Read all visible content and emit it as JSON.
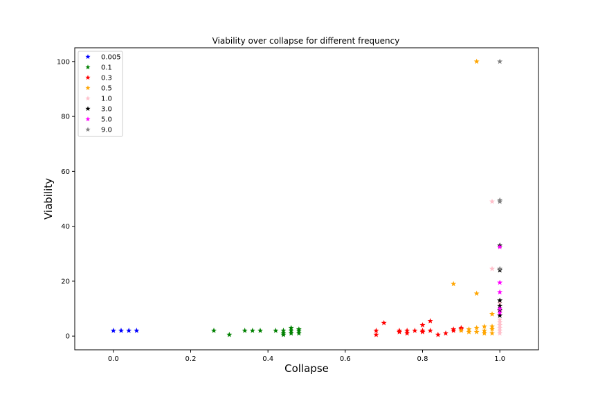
{
  "chart_data": {
    "type": "scatter",
    "title": "Viability over collapse for different frequency",
    "xlabel": "Collapse",
    "ylabel": "Viability",
    "xlim": [
      -0.1,
      1.1
    ],
    "ylim": [
      -5,
      105
    ],
    "xticks": [
      "0.0",
      "0.2",
      "0.4",
      "0.6",
      "0.8",
      "1.0"
    ],
    "yticks": [
      "0",
      "20",
      "40",
      "60",
      "80",
      "100"
    ],
    "grid": false,
    "legend": "top-left",
    "marker": "star",
    "series": [
      {
        "name": "0.005",
        "color": "#0000ff",
        "points": [
          [
            0.0,
            2
          ],
          [
            0.02,
            2
          ],
          [
            0.04,
            2
          ],
          [
            0.06,
            2
          ]
        ]
      },
      {
        "name": "0.1",
        "color": "#008000",
        "points": [
          [
            0.26,
            2
          ],
          [
            0.3,
            0.5
          ],
          [
            0.34,
            2
          ],
          [
            0.36,
            2
          ],
          [
            0.38,
            2
          ],
          [
            0.42,
            2
          ],
          [
            0.44,
            2
          ],
          [
            0.44,
            1
          ],
          [
            0.44,
            0.5
          ],
          [
            0.46,
            3
          ],
          [
            0.46,
            2
          ],
          [
            0.46,
            1
          ],
          [
            0.48,
            2.5
          ],
          [
            0.48,
            2
          ],
          [
            0.48,
            1
          ]
        ]
      },
      {
        "name": "0.3",
        "color": "#ff0000",
        "points": [
          [
            0.68,
            2
          ],
          [
            0.68,
            0.5
          ],
          [
            0.7,
            4.8
          ],
          [
            0.74,
            2
          ],
          [
            0.74,
            1.5
          ],
          [
            0.76,
            2
          ],
          [
            0.76,
            1
          ],
          [
            0.78,
            2
          ],
          [
            0.8,
            4
          ],
          [
            0.8,
            2
          ],
          [
            0.8,
            1.5
          ],
          [
            0.82,
            5.5
          ],
          [
            0.82,
            2
          ],
          [
            0.84,
            0.5
          ],
          [
            0.86,
            1
          ],
          [
            0.88,
            2
          ],
          [
            0.88,
            2.5
          ],
          [
            0.9,
            3
          ],
          [
            0.9,
            2.5
          ]
        ]
      },
      {
        "name": "0.5",
        "color": "#ffa500",
        "points": [
          [
            0.88,
            19
          ],
          [
            0.9,
            2
          ],
          [
            0.92,
            2.5
          ],
          [
            0.92,
            1.5
          ],
          [
            0.94,
            100
          ],
          [
            0.94,
            15.5
          ],
          [
            0.94,
            3
          ],
          [
            0.94,
            1.5
          ],
          [
            0.96,
            3.5
          ],
          [
            0.96,
            2
          ],
          [
            0.96,
            1
          ],
          [
            0.98,
            8
          ],
          [
            0.98,
            3.5
          ],
          [
            0.98,
            2.5
          ],
          [
            0.98,
            1
          ]
        ]
      },
      {
        "name": "1.0",
        "color": "#ffc0cb",
        "points": [
          [
            0.98,
            49
          ],
          [
            0.98,
            24.5
          ],
          [
            1.0,
            12
          ],
          [
            1.0,
            9
          ],
          [
            1.0,
            6
          ],
          [
            1.0,
            5
          ],
          [
            1.0,
            4
          ],
          [
            1.0,
            3
          ],
          [
            1.0,
            2
          ],
          [
            1.0,
            1
          ]
        ]
      },
      {
        "name": "3.0",
        "color": "#000000",
        "points": [
          [
            1.0,
            33
          ],
          [
            1.0,
            24
          ],
          [
            1.0,
            13
          ],
          [
            1.0,
            11
          ],
          [
            1.0,
            9.5
          ],
          [
            1.0,
            7.5
          ]
        ]
      },
      {
        "name": "5.0",
        "color": "#ff00ff",
        "points": [
          [
            1.0,
            32.5
          ],
          [
            1.0,
            19.5
          ],
          [
            1.0,
            16
          ],
          [
            1.0,
            10
          ],
          [
            1.0,
            8.5
          ]
        ]
      },
      {
        "name": "9.0",
        "color": "#808080",
        "points": [
          [
            1.0,
            100
          ],
          [
            1.0,
            49.5
          ],
          [
            1.0,
            49
          ],
          [
            1.0,
            24.5
          ]
        ]
      }
    ]
  }
}
